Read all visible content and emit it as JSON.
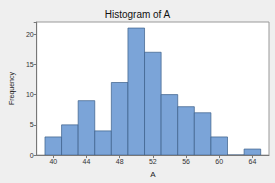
{
  "chart_data": {
    "type": "histogram",
    "title": "Histogram of A",
    "x_label": "A",
    "y_label": "Frequency",
    "bins": [
      39,
      41,
      43,
      45,
      47,
      49,
      51,
      53,
      55,
      57,
      59,
      61,
      63,
      65
    ],
    "values": [
      3,
      5,
      9,
      4,
      12,
      21,
      17,
      10,
      8,
      7,
      3,
      0,
      1
    ],
    "color": "#7ba4d8",
    "xlim": [
      38,
      66
    ],
    "xticks": [
      40,
      44,
      48,
      52,
      56,
      60,
      64
    ],
    "ylim": [
      0,
      22
    ],
    "yticks": [
      0,
      5,
      10,
      15,
      20
    ],
    "grid": false
  }
}
